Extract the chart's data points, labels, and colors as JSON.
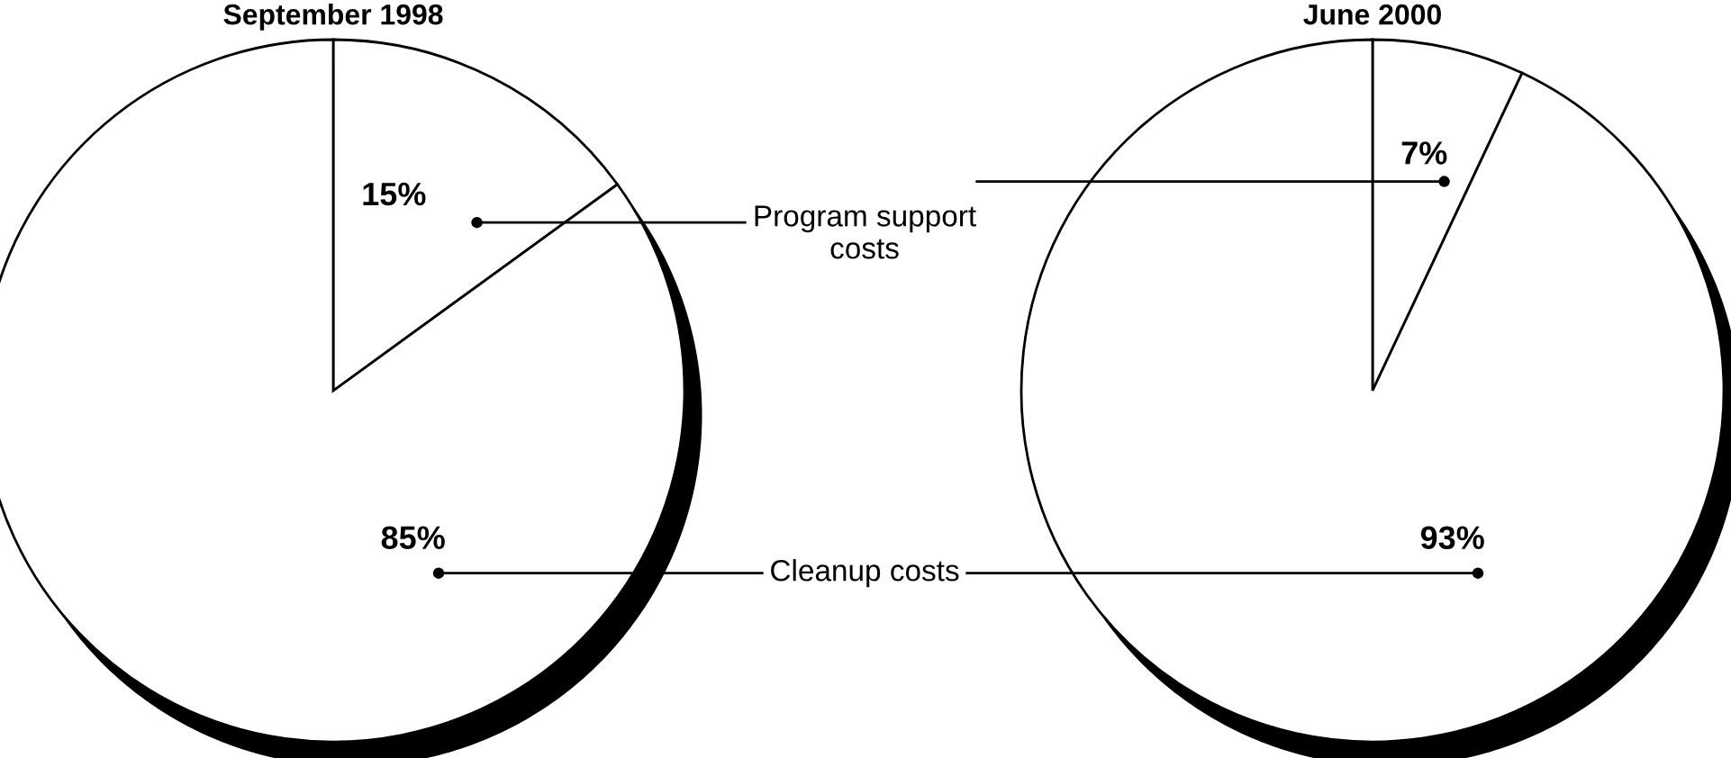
{
  "chart_data": [
    {
      "type": "pie",
      "title": "September 1998",
      "categories": [
        "Program support costs",
        "Cleanup costs"
      ],
      "values": [
        15,
        85
      ],
      "colors": [
        "#ffffff",
        "#ffffff"
      ],
      "value_labels": [
        "15%",
        "85%"
      ]
    },
    {
      "type": "pie",
      "title": "June 2000",
      "categories": [
        null,
        null
      ],
      "values": [
        7,
        93
      ],
      "colors": [
        "#ffffff",
        "#ffffff"
      ],
      "value_labels": [
        "7%",
        "93%"
      ]
    }
  ]
}
